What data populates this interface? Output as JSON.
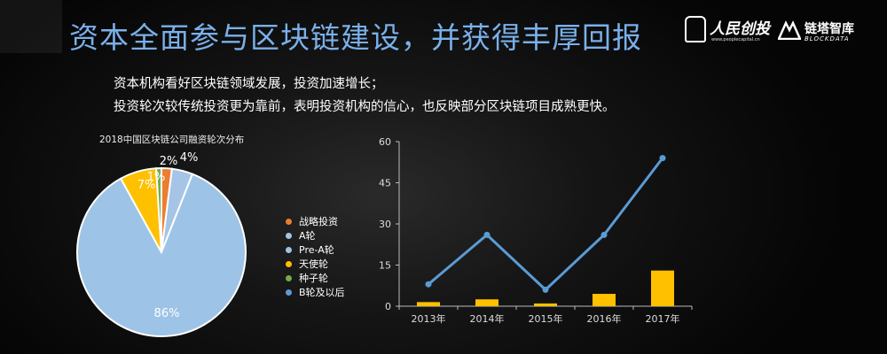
{
  "header": {
    "title": "资本全面参与区块链建设，并获得丰厚回报",
    "logo1": {
      "name": "人民创投",
      "url": "www.peoplecapital.cn"
    },
    "logo2": {
      "name": "链塔智库",
      "sub": "BLOCKDATA"
    }
  },
  "bullets": [
    "资本机构看好区块链领域发展，投资加速增长；",
    "投资轮次较传统投资更为靠前，表明投资机构的信心，也反映部分区块链项目成熟更快。"
  ],
  "colors": {
    "title": "#7ab0ea",
    "line": "#5b9bd5",
    "bar": "#ffc000",
    "axis": "#bbbbbb"
  },
  "chart_data": [
    {
      "type": "pie",
      "title": "2018中国区块链公司融资轮次分布",
      "slices": [
        {
          "label": "战略投资",
          "value": 2,
          "display": "2%",
          "color": "#ed7d31"
        },
        {
          "label": "A轮",
          "value": 4,
          "display": "4%",
          "color": "#a5c4e6"
        },
        {
          "label": "Pre-A轮",
          "value": 86,
          "display": "86%",
          "color": "#9dc3e6"
        },
        {
          "label": "天使轮",
          "value": 7,
          "display": "7%",
          "color": "#ffc000"
        },
        {
          "label": "种子轮",
          "value": 1,
          "display": "1%",
          "color": "#70ad47"
        },
        {
          "label": "B轮及以后",
          "value": 0,
          "display": "",
          "color": "#5b9bd5"
        }
      ],
      "legend_position": "right"
    },
    {
      "type": "bar+line",
      "categories": [
        "2013年",
        "2014年",
        "2015年",
        "2016年",
        "2017年"
      ],
      "series": [
        {
          "kind": "bar",
          "values": [
            1.5,
            2.5,
            1,
            4.5,
            13
          ]
        },
        {
          "kind": "line",
          "values": [
            8,
            26,
            6,
            26,
            54
          ]
        }
      ],
      "ylim": [
        0,
        60
      ],
      "yticks": [
        0,
        15,
        30,
        45,
        60
      ],
      "grid": false
    }
  ]
}
